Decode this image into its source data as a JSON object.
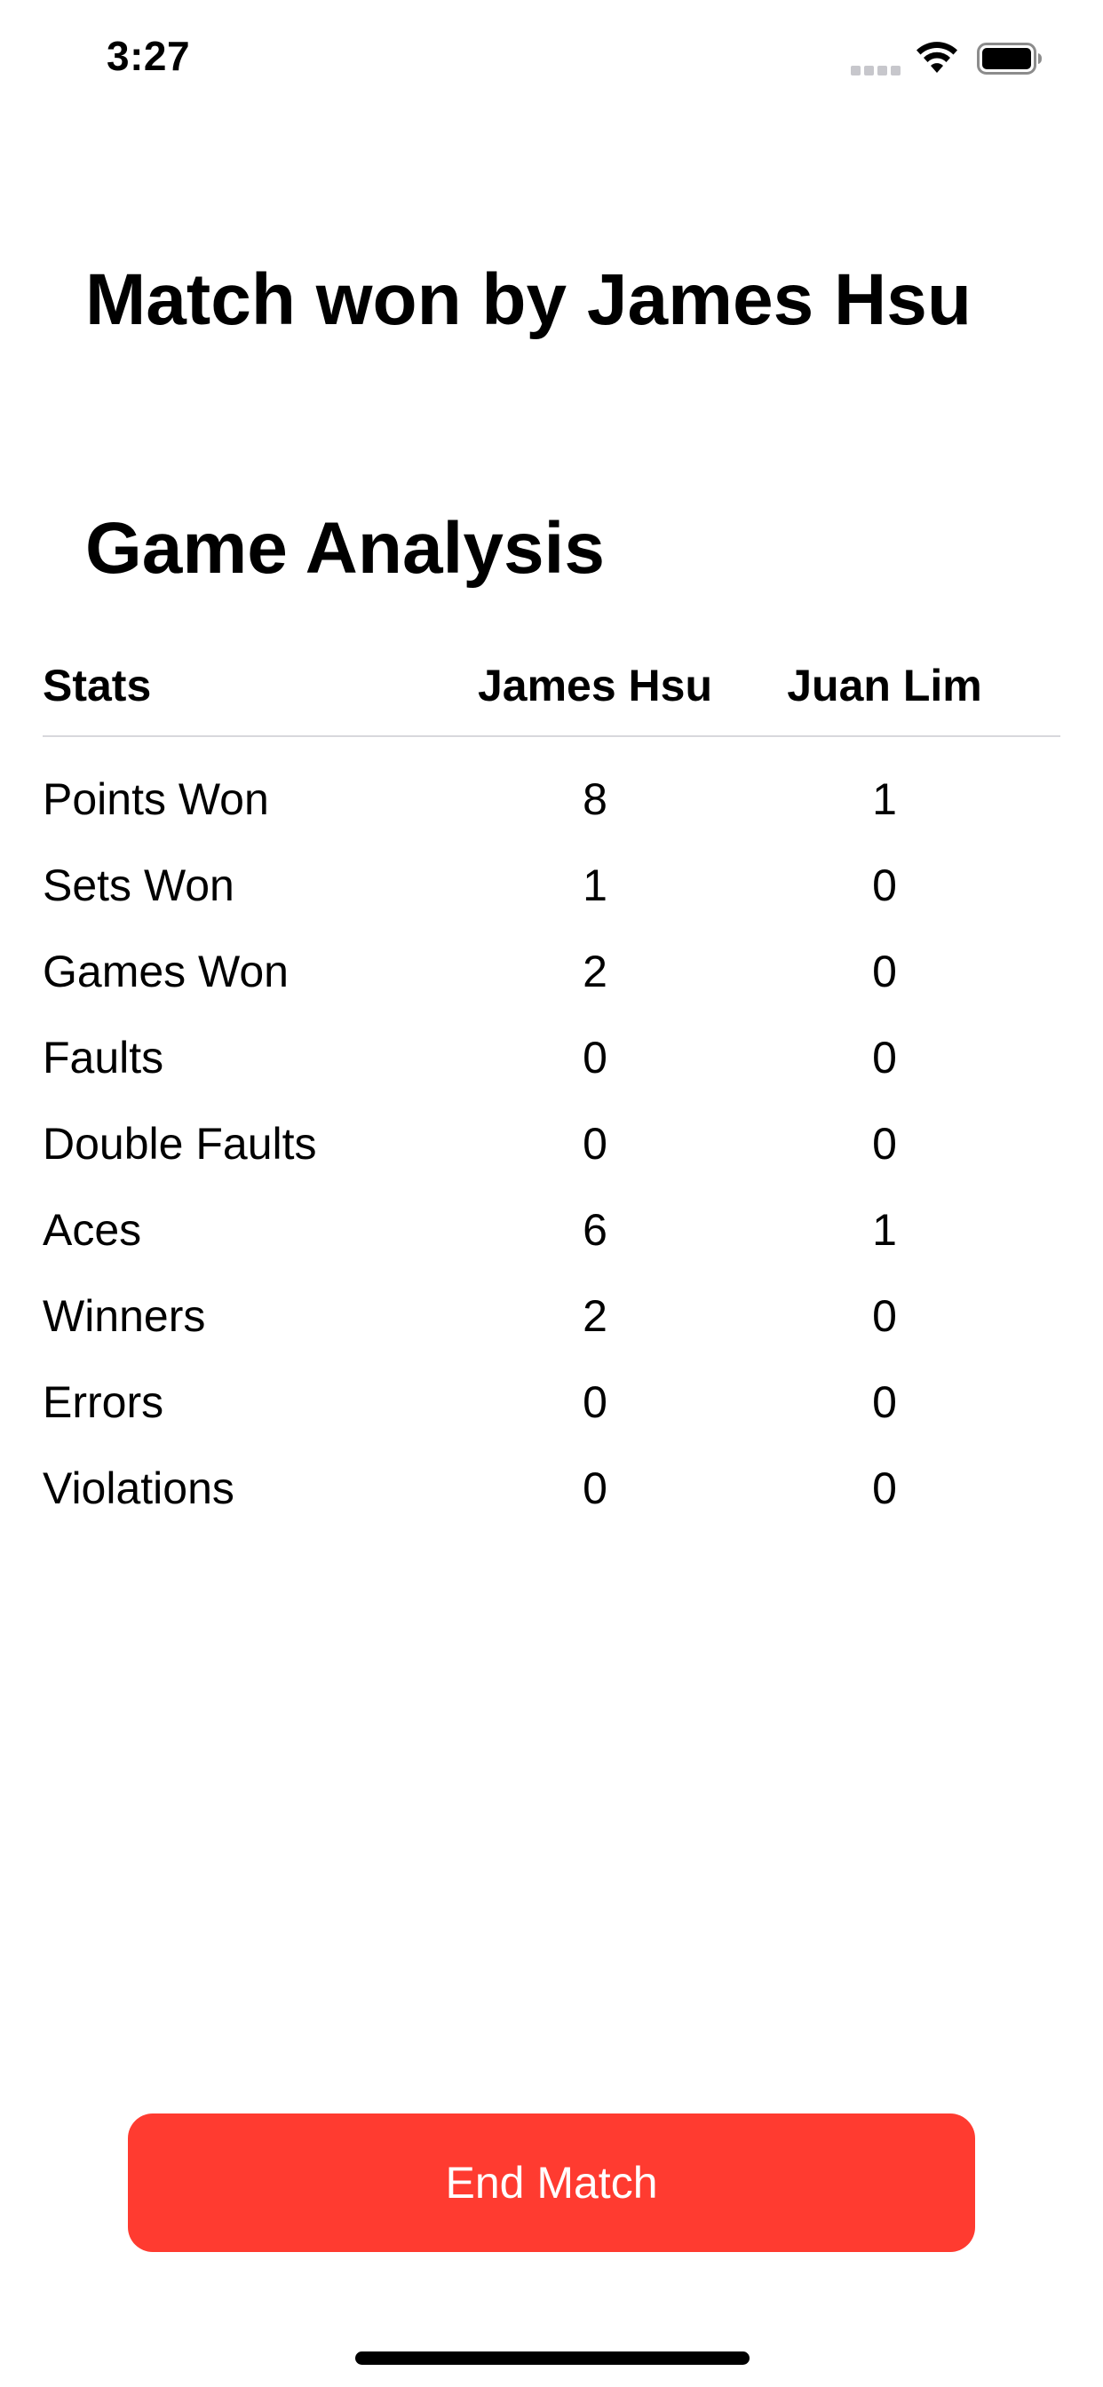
{
  "status_bar": {
    "time": "3:27",
    "icons": [
      "cellular-signal-icon",
      "wifi-icon",
      "battery-icon"
    ]
  },
  "header": {
    "match_result": "Match won by James Hsu",
    "section_title": "Game Analysis"
  },
  "table": {
    "columns": [
      "Stats",
      "James Hsu",
      "Juan Lim"
    ],
    "rows": [
      {
        "label": "Points Won",
        "p1": "8",
        "p2": "1"
      },
      {
        "label": "Sets Won",
        "p1": "1",
        "p2": "0"
      },
      {
        "label": "Games Won",
        "p1": "2",
        "p2": "0"
      },
      {
        "label": "Faults",
        "p1": "0",
        "p2": "0"
      },
      {
        "label": "Double Faults",
        "p1": "0",
        "p2": "0"
      },
      {
        "label": "Aces",
        "p1": "6",
        "p2": "1"
      },
      {
        "label": "Winners",
        "p1": "2",
        "p2": "0"
      },
      {
        "label": "Errors",
        "p1": "0",
        "p2": "0"
      },
      {
        "label": "Violations",
        "p1": "0",
        "p2": "0"
      }
    ]
  },
  "actions": {
    "end_match_label": "End Match"
  },
  "colors": {
    "accent": "#ff3b30",
    "divider": "#d8d8dc",
    "text": "#000000",
    "background": "#ffffff"
  }
}
